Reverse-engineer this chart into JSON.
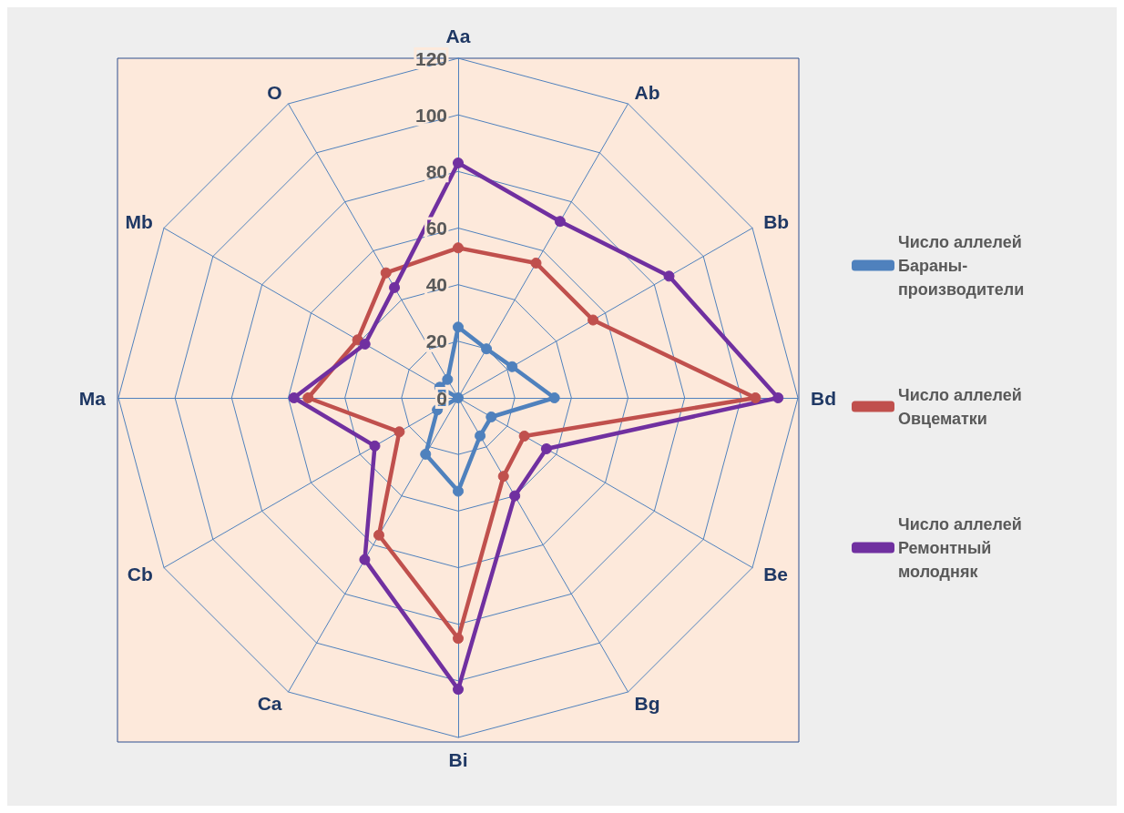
{
  "chart_data": {
    "type": "radar",
    "categories": [
      "Aa",
      "Ab",
      "Bb",
      "Bd",
      "Be",
      "Bg",
      "Bi",
      "Ca",
      "Cb",
      "Ma",
      "Mb",
      "O"
    ],
    "series": [
      {
        "name": "Число аллелей Бараны-производители",
        "color": "#4f81bd",
        "values": [
          25,
          20,
          22,
          34,
          13.5,
          15.5,
          33,
          23,
          8.5,
          0,
          7.5,
          7.5
        ]
      },
      {
        "name": "Число аллелей Овцематки",
        "color": "#c0504d",
        "values": [
          53,
          55,
          55,
          105,
          27,
          32,
          85,
          56,
          24,
          53,
          41,
          51
        ]
      },
      {
        "name": "Число аллелей Ремонтный молодняк",
        "color": "#7030a0",
        "values": [
          83,
          72,
          86,
          113,
          36,
          40,
          103,
          66,
          34,
          58,
          38,
          45
        ]
      }
    ],
    "ylim": [
      0,
      120
    ],
    "yticks": [
      0,
      20,
      40,
      60,
      80,
      100,
      120
    ],
    "legend": "right",
    "marker": "circle"
  }
}
